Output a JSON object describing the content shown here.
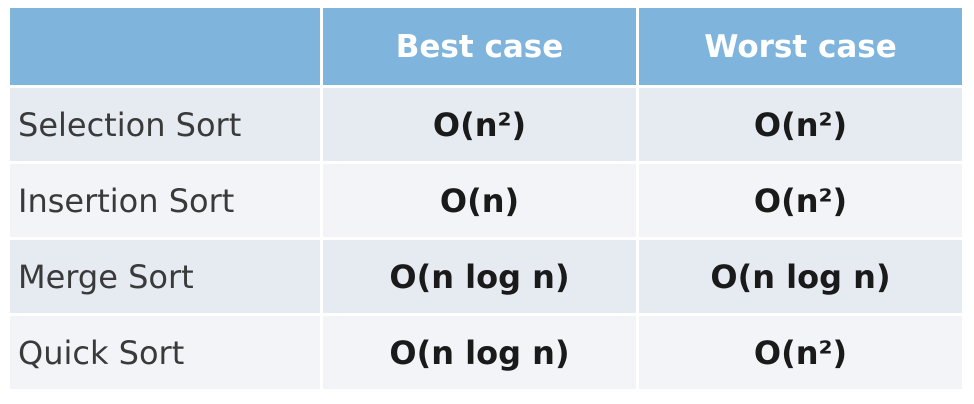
{
  "table": {
    "headers": [
      "",
      "Best case",
      "Worst case"
    ],
    "rows": [
      {
        "algorithm": "Selection Sort",
        "best": "O(n²)",
        "worst": "O(n²)"
      },
      {
        "algorithm": "Insertion Sort",
        "best": "O(n)",
        "worst": "O(n²)"
      },
      {
        "algorithm": "Merge Sort",
        "best": "O(n log n)",
        "worst": "O(n log n)"
      },
      {
        "algorithm": "Quick Sort",
        "best": "O(n log n)",
        "worst": "O(n²)"
      }
    ]
  },
  "colors": {
    "header_bg": "#7fb4dc",
    "header_text": "#ffffff",
    "row_odd_bg": "#e6ebf2",
    "row_even_bg": "#f2f4f8"
  }
}
